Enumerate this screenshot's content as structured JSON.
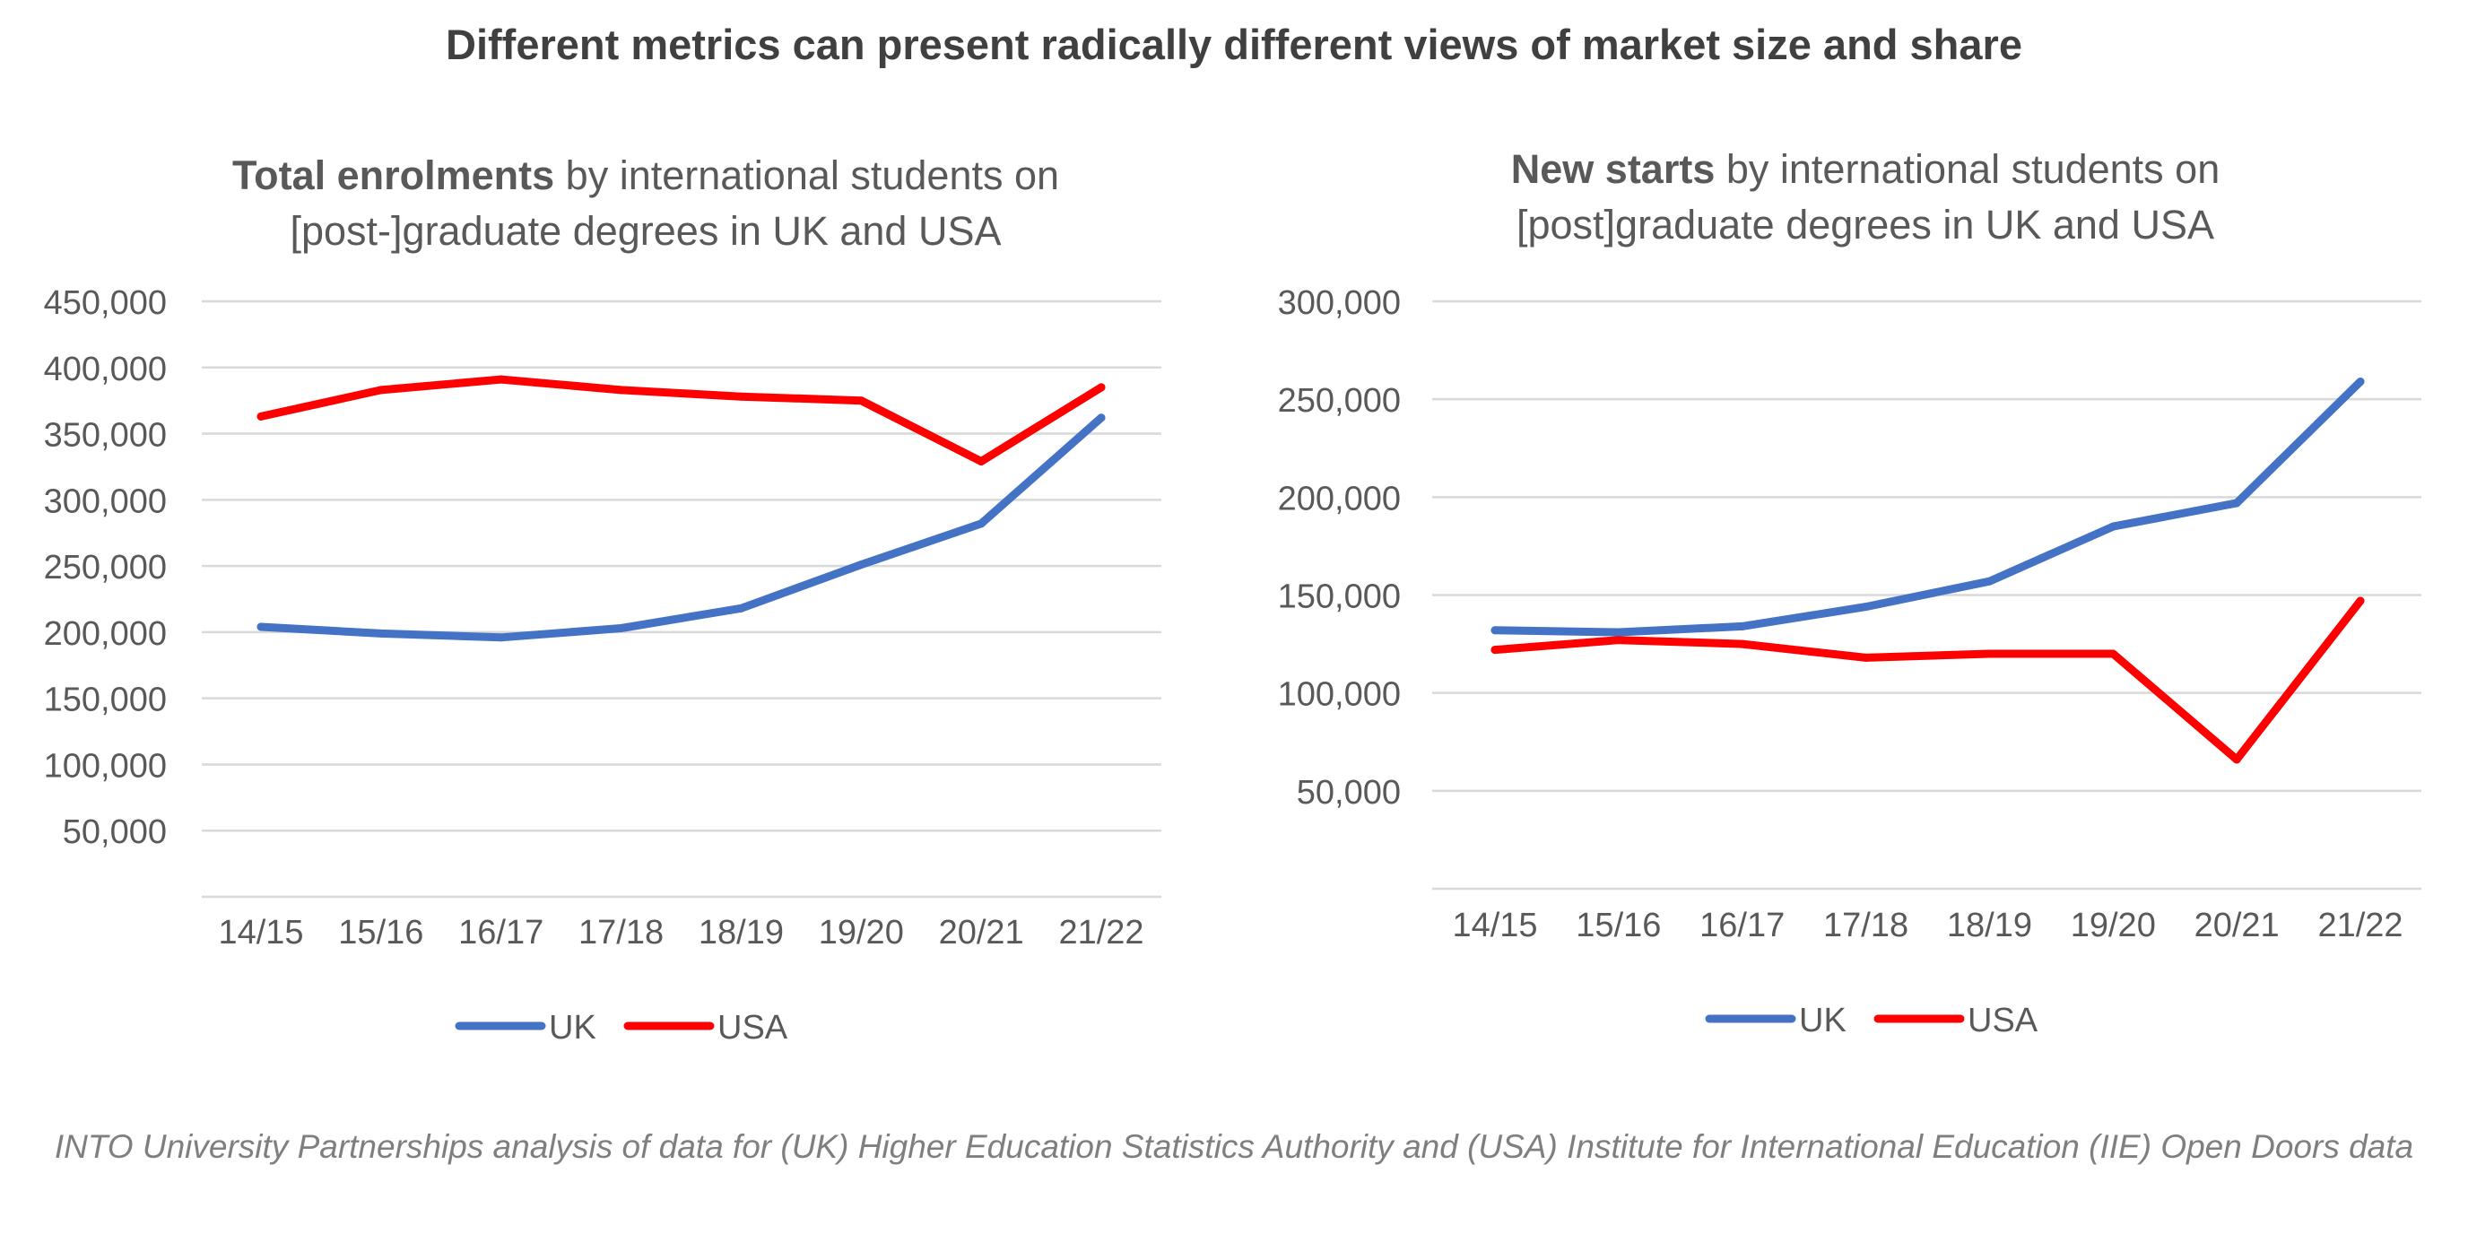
{
  "figure": {
    "title": "Different metrics can present radically different views of market size and share",
    "source": "INTO University Partnerships analysis of data for (UK) Higher Education Statistics Authority and (USA) Institute for International Education (IIE) Open Doors data"
  },
  "charts": [
    {
      "title_bold": "Total enrolments",
      "title_rest": " by international students  on",
      "title_line2": "[post-]graduate degrees in UK and USA"
    },
    {
      "title_bold": "New starts",
      "title_rest": " by international students on",
      "title_line2": "[post]graduate degrees in UK and USA"
    }
  ],
  "chart_data": [
    {
      "type": "line",
      "title": "Total enrolments by international students on [post-]graduate degrees in UK and USA",
      "xlabel": "",
      "ylabel": "",
      "categories": [
        "14/15",
        "15/16",
        "16/17",
        "17/18",
        "18/19",
        "19/20",
        "20/21",
        "21/22"
      ],
      "ylim": [
        0,
        450000
      ],
      "yticks": [
        50000,
        100000,
        150000,
        200000,
        250000,
        300000,
        350000,
        400000,
        450000
      ],
      "ytick_labels": [
        "50,000",
        "100,000",
        "150,000",
        "200,000",
        "250,000",
        "300,000",
        "350,000",
        "400,000",
        "450,000"
      ],
      "grid": true,
      "legend": "bottom",
      "series": [
        {
          "name": "UK",
          "color": "#4472C4",
          "values": [
            204000,
            199000,
            196000,
            203000,
            218000,
            251000,
            282000,
            362000
          ]
        },
        {
          "name": "USA",
          "color": "#FF0000",
          "values": [
            363000,
            383000,
            391000,
            383000,
            378000,
            375000,
            329000,
            385000
          ]
        }
      ]
    },
    {
      "type": "line",
      "title": "New starts by international students on [post]graduate degrees in UK and USA",
      "xlabel": "",
      "ylabel": "",
      "categories": [
        "14/15",
        "15/16",
        "16/17",
        "17/18",
        "18/19",
        "19/20",
        "20/21",
        "21/22"
      ],
      "ylim": [
        0,
        300000
      ],
      "yticks": [
        50000,
        100000,
        150000,
        200000,
        250000,
        300000
      ],
      "ytick_labels": [
        "50,000",
        "100,000",
        "150,000",
        "200,000",
        "250,000",
        "300,000"
      ],
      "grid": true,
      "legend": "bottom",
      "series": [
        {
          "name": "UK",
          "color": "#4472C4",
          "values": [
            132000,
            131000,
            134000,
            144000,
            157000,
            185000,
            197000,
            259000
          ]
        },
        {
          "name": "USA",
          "color": "#FF0000",
          "values": [
            122000,
            127000,
            125000,
            118000,
            120000,
            120000,
            66000,
            147000
          ]
        }
      ]
    }
  ]
}
